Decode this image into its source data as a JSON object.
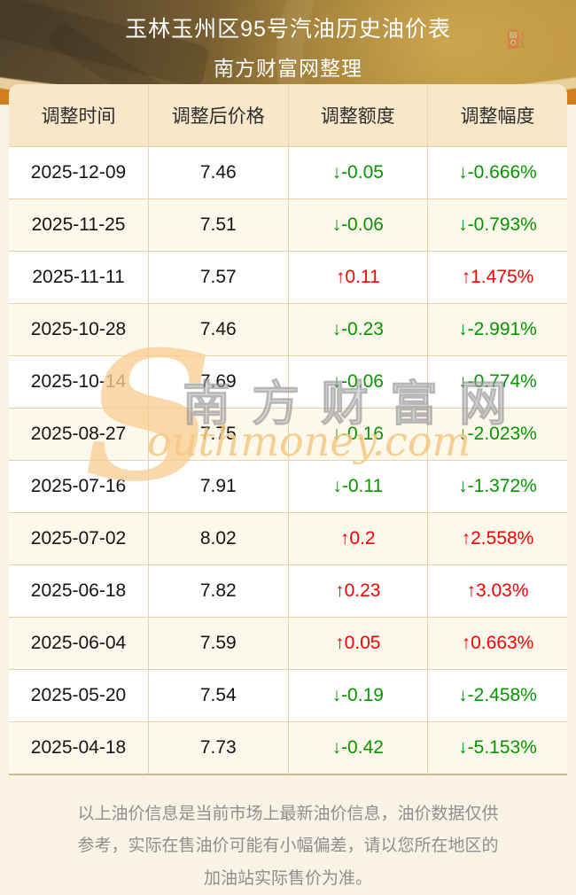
{
  "page": {
    "background_color": "#f9f3e6"
  },
  "header": {
    "title": "玉林玉州区95号汽油历史油价表",
    "subtitle": "南方财富网整理",
    "gauge_letter": "F",
    "fuel_pump_icon": "⛽",
    "colors": {
      "band_orange": "#d07e1f",
      "band_rim": "#e9cf9c",
      "gold_dark": "#5f4e33",
      "gold_light": "#b98f3a",
      "title_text": "#ffffff"
    }
  },
  "table": {
    "columns": [
      "调整时间",
      "调整后价格",
      "调整额度",
      "调整幅度"
    ],
    "rows": [
      {
        "date": "2025-12-09",
        "price": "7.46",
        "change": "↓-0.05",
        "percent": "↓-0.666%",
        "direction": "down"
      },
      {
        "date": "2025-11-25",
        "price": "7.51",
        "change": "↓-0.06",
        "percent": "↓-0.793%",
        "direction": "down"
      },
      {
        "date": "2025-11-11",
        "price": "7.57",
        "change": "↑0.11",
        "percent": "↑1.475%",
        "direction": "up"
      },
      {
        "date": "2025-10-28",
        "price": "7.46",
        "change": "↓-0.23",
        "percent": "↓-2.991%",
        "direction": "down"
      },
      {
        "date": "2025-10-14",
        "price": "7.69",
        "change": "↓-0.06",
        "percent": "↓-0.774%",
        "direction": "down"
      },
      {
        "date": "2025-08-27",
        "price": "7.75",
        "change": "↓-0.16",
        "percent": "↓-2.023%",
        "direction": "down"
      },
      {
        "date": "2025-07-16",
        "price": "7.91",
        "change": "↓-0.11",
        "percent": "↓-1.372%",
        "direction": "down"
      },
      {
        "date": "2025-07-02",
        "price": "8.02",
        "change": "↑0.2",
        "percent": "↑2.558%",
        "direction": "up"
      },
      {
        "date": "2025-06-18",
        "price": "7.82",
        "change": "↑0.23",
        "percent": "↑3.03%",
        "direction": "up"
      },
      {
        "date": "2025-06-04",
        "price": "7.59",
        "change": "↑0.05",
        "percent": "↑0.663%",
        "direction": "up"
      },
      {
        "date": "2025-05-20",
        "price": "7.54",
        "change": "↓-0.19",
        "percent": "↓-2.458%",
        "direction": "down"
      },
      {
        "date": "2025-04-18",
        "price": "7.73",
        "change": "↓-0.42",
        "percent": "↓-5.153%",
        "direction": "down"
      }
    ],
    "colors": {
      "up": "#fc0000",
      "down": "#089400",
      "header_bg": "#f8e7c9",
      "row_alt_bg": "#fdf8ec",
      "divider": "#ecd0a6",
      "bottom_border": "#d8b684"
    }
  },
  "watermark": {
    "initial": "S",
    "cjk_text": "南方财富网",
    "latin_text": "outhmoney.com"
  },
  "footer": {
    "text": "以上油价信息是当前市场上最新油价信息，油价数据仅供参考，实际在售油价可能有小幅偏差，请以您所在地区的加油站实际售价为准。"
  }
}
